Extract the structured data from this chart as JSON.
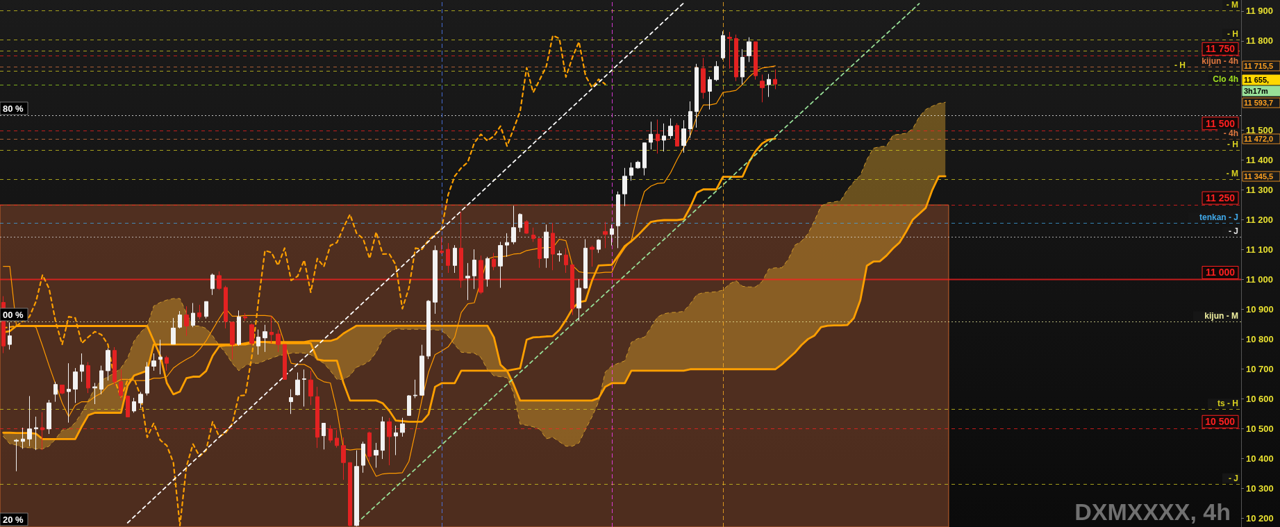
{
  "chart_data": {
    "type": "candlestick",
    "title": "DXMXXXX, 4h",
    "categories": [
      null,
      null,
      null,
      null,
      null,
      null,
      null,
      null,
      null,
      null,
      null,
      null,
      null,
      null,
      null,
      null,
      null,
      null,
      null,
      null,
      null,
      null,
      null,
      null,
      null,
      null,
      null,
      null,
      null,
      null,
      null,
      null,
      null,
      null,
      null,
      null,
      null,
      null,
      null,
      null,
      null,
      null,
      null,
      null,
      null,
      null,
      null,
      null,
      null,
      null,
      null,
      null,
      null,
      null,
      null,
      null,
      null,
      null,
      null,
      null,
      null,
      null,
      null,
      null,
      null,
      null,
      null,
      null,
      null,
      null,
      null,
      null,
      null,
      null,
      null,
      null,
      null,
      null,
      null,
      null,
      null,
      null,
      null,
      null,
      null,
      null,
      null,
      null,
      null,
      null,
      null,
      null,
      null,
      null,
      null,
      null,
      null,
      null,
      null,
      null,
      null,
      null,
      null,
      null,
      null,
      null,
      null,
      null,
      null,
      null,
      null,
      null,
      null,
      null,
      null,
      null,
      null,
      null,
      null,
      null,
      null,
      null,
      null,
      null,
      null,
      null,
      null,
      null,
      null,
      null,
      null,
      null,
      null,
      null,
      null,
      null,
      null,
      null,
      null,
      null,
      null,
      null,
      null,
      null,
      null
    ],
    "ohlc": [
      [
        10923,
        10944,
        10753,
        10777
      ],
      [
        10782,
        10856,
        10765,
        10811
      ],
      [
        10458,
        10465,
        10357,
        10461
      ],
      [
        10457,
        10503,
        10432,
        10465
      ],
      [
        10465,
        10609,
        10441,
        10499
      ],
      [
        10499,
        10540,
        10428,
        10503
      ],
      [
        10503,
        10555,
        10428,
        10496
      ],
      [
        10499,
        10596,
        10482,
        10586
      ],
      [
        10615,
        10657,
        10590,
        10648
      ],
      [
        10646,
        10646,
        10615,
        10619
      ],
      [
        10624,
        10719,
        10520,
        10632
      ],
      [
        10632,
        10703,
        10586,
        10690
      ],
      [
        10692,
        10752,
        10657,
        10713
      ],
      [
        10711,
        10723,
        10619,
        10636
      ],
      [
        10636,
        10653,
        10582,
        10640
      ],
      [
        10632,
        10711,
        10615,
        10694
      ],
      [
        10694,
        10769,
        10661,
        10762
      ],
      [
        10762,
        10773,
        10644,
        10657
      ],
      [
        10657,
        10698,
        10594,
        10611
      ],
      [
        10609,
        10611,
        10539,
        10539
      ],
      [
        10559,
        10603,
        10553,
        10590
      ],
      [
        10586,
        10623,
        10569,
        10615
      ],
      [
        10619,
        10723,
        10611,
        10707
      ],
      [
        10709,
        10752,
        10694,
        10727
      ],
      [
        10732,
        10798,
        10682,
        10740
      ],
      [
        10738,
        10744,
        10694,
        10719
      ],
      [
        10783,
        10871,
        10783,
        10837
      ],
      [
        10840,
        10894,
        10836,
        10881
      ],
      [
        10881,
        10910,
        10811,
        10844
      ],
      [
        10846,
        10921,
        10840,
        10887
      ],
      [
        10888,
        10915,
        10867,
        10875
      ],
      [
        10876,
        10926,
        10869,
        10926
      ],
      [
        10969,
        11020,
        10948,
        11015
      ],
      [
        11013,
        11027,
        10965,
        10970
      ],
      [
        10973,
        10979,
        10836,
        10859
      ],
      [
        10857,
        10857,
        10732,
        10782
      ],
      [
        10782,
        10896,
        10778,
        10875
      ],
      [
        10875,
        10887,
        10861,
        10871
      ],
      [
        10848,
        10852,
        10778,
        10786
      ],
      [
        10777,
        10832,
        10748,
        10807
      ],
      [
        10804,
        10848,
        10757,
        10825
      ],
      [
        10823,
        10877,
        10786,
        10815
      ],
      [
        10817,
        10832,
        10757,
        10782
      ],
      [
        10782,
        10782,
        10665,
        10665
      ],
      [
        10590,
        10632,
        10549,
        10604
      ],
      [
        10613,
        10688,
        10611,
        10663
      ],
      [
        10665,
        10698,
        10574,
        10667
      ],
      [
        10663,
        10694,
        10579,
        10609
      ],
      [
        10607,
        10640,
        10435,
        10471
      ],
      [
        10476,
        10518,
        10430,
        10518
      ],
      [
        10499,
        10511,
        10453,
        10461
      ],
      [
        10468,
        10495,
        10436,
        10443
      ],
      [
        10443,
        10470,
        10328,
        10386
      ],
      [
        10386,
        10386,
        10172,
        10175
      ],
      [
        10175,
        10427,
        10172,
        10373
      ],
      [
        10377,
        10456,
        10352,
        10448
      ],
      [
        10486,
        10490,
        10390,
        10407
      ],
      [
        10411,
        10452,
        10369,
        10427
      ],
      [
        10427,
        10540,
        10398,
        10523
      ],
      [
        10523,
        10536,
        10377,
        10473
      ],
      [
        10475,
        10510,
        10411,
        10486
      ],
      [
        10487,
        10536,
        10473,
        10516
      ],
      [
        10544,
        10612,
        10544,
        10610
      ],
      [
        10610,
        10664,
        10602,
        10612
      ],
      [
        10612,
        10781,
        10610,
        10743
      ],
      [
        10743,
        10931,
        10733,
        10927
      ],
      [
        10924,
        11114,
        10885,
        11097
      ],
      [
        11095,
        11143,
        11085,
        11090
      ],
      [
        11101,
        11122,
        11022,
        11047
      ],
      [
        11047,
        11115,
        11022,
        11105
      ],
      [
        11105,
        11226,
        10972,
        10997
      ],
      [
        11005,
        11055,
        10931,
        11011
      ],
      [
        11012,
        11101,
        10968,
        11065
      ],
      [
        11064,
        11080,
        10951,
        10957
      ],
      [
        11001,
        11076,
        10976,
        11070
      ],
      [
        11068,
        11089,
        11031,
        11043
      ],
      [
        11045,
        11126,
        10972,
        11114
      ],
      [
        11115,
        11155,
        11076,
        11124
      ],
      [
        11126,
        11247,
        11118,
        11174
      ],
      [
        11174,
        11222,
        11159,
        11218
      ],
      [
        11194,
        11199,
        11153,
        11155
      ],
      [
        11149,
        11174,
        11126,
        11137
      ],
      [
        11137,
        11137,
        11039,
        11070
      ],
      [
        11072,
        11184,
        11039,
        11159
      ],
      [
        11155,
        11189,
        11031,
        11085
      ],
      [
        11083,
        11097,
        11060,
        11086
      ],
      [
        11082,
        11105,
        11022,
        11049
      ],
      [
        11049,
        11049,
        10881,
        10902
      ],
      [
        10904,
        11001,
        10860,
        10971
      ],
      [
        10971,
        11135,
        10968,
        11105
      ],
      [
        11108,
        11114,
        11043,
        11101
      ],
      [
        11101,
        11135,
        11089,
        11132
      ],
      [
        11161,
        11193,
        11105,
        11151
      ],
      [
        11151,
        11184,
        11114,
        11170
      ],
      [
        11180,
        11295,
        11105,
        11284
      ],
      [
        11287,
        11374,
        11246,
        11346
      ],
      [
        11349,
        11392,
        11331,
        11374
      ],
      [
        11374,
        11398,
        11371,
        11393
      ],
      [
        11374,
        11458,
        11349,
        11458
      ],
      [
        11460,
        11529,
        11436,
        11487
      ],
      [
        11487,
        11536,
        11422,
        11465
      ],
      [
        11467,
        11523,
        11429,
        11481
      ],
      [
        11482,
        11540,
        11472,
        11514
      ],
      [
        11516,
        11524,
        11447,
        11447
      ],
      [
        11449,
        11534,
        11425,
        11505
      ],
      [
        11505,
        11597,
        11475,
        11563
      ],
      [
        11563,
        11723,
        11509,
        11710
      ],
      [
        11707,
        11743,
        11606,
        11627
      ],
      [
        11631,
        11680,
        11570,
        11670
      ],
      [
        11670,
        11732,
        11665,
        11714
      ],
      [
        11743,
        11832,
        11737,
        11818
      ],
      [
        11812,
        11830,
        11707,
        11808
      ],
      [
        11808,
        11821,
        11665,
        11679
      ],
      [
        11679,
        11772,
        11654,
        11745
      ],
      [
        11750,
        11812,
        11729,
        11797
      ],
      [
        11797,
        11797,
        11670,
        11683
      ],
      [
        11665,
        11687,
        11594,
        11643
      ],
      [
        11653,
        11689,
        11612,
        11671
      ],
      [
        11671,
        11704,
        11638,
        11655
      ],
      null,
      null,
      null,
      null,
      null,
      null,
      null,
      null,
      null,
      null,
      null,
      null,
      null,
      null,
      null,
      null,
      null,
      null,
      null,
      null,
      null,
      null,
      null,
      null,
      null,
      null
    ],
    "series": [
      {
        "type": "line",
        "color": "#ff9a00",
        "line_style": "solid",
        "values": [
          11044,
          11044,
          10846,
          10846,
          10846,
          10840,
          10777,
          10711,
          null,
          10586,
          10540,
          10578,
          10590,
          10590,
          10607,
          10619,
          10644,
          10653,
          10665,
          10665,
          10661,
          10661,
          10661,
          10669,
          10669,
          10674,
          10703,
          10719,
          10732,
          10744,
          10765,
          10794,
          10832,
          10869,
          10902,
          10877,
          10877,
          10879,
          10879,
          10879,
          10879,
          10877,
          10852,
          10786,
          10719,
          10715,
          10715,
          10703,
          10669,
          10657,
          10653,
          10561,
          10432,
          10428,
          10431,
          10431,
          10382,
          10340,
          10348,
          10350,
          10350,
          10352,
          10390,
          10490,
          10598,
          10689,
          10748,
          10760,
          10774,
          10806,
          10889,
          10918,
          10922,
          null,
          11068,
          11076,
          11076,
          11079,
          11085,
          11087,
          11097,
          11101,
          11105,
          11107,
          11107,
          11135,
          11130,
          11047,
          11026,
          11022,
          11022,
          11022,
          11024,
          11024,
          11072,
          11105,
          11131,
          11224,
          11295,
          11313,
          11322,
          11324,
          11358,
          11402,
          11442,
          11483,
          11545,
          11585,
          11585,
          11590,
          11627,
          11630,
          11634,
          11654,
          11679,
          11698,
          11709,
          11712,
          11716,
          null,
          null,
          null,
          null,
          null,
          null,
          null,
          null,
          null,
          null,
          null,
          null,
          null,
          null,
          null,
          null,
          null,
          null,
          null,
          null,
          null,
          null,
          null,
          null,
          null,
          null
        ]
      },
      {
        "type": "line",
        "color": "#ffa000",
        "line_style": "solid",
        "values": [
          10823,
          10827,
          10844,
          10844,
          10844,
          10844,
          10844,
          10844,
          10844,
          10844,
          10844,
          10844,
          10844,
          10844,
          10844,
          10844,
          10844,
          10844,
          10844,
          10844,
          10844,
          10844,
          10844,
          10794,
          10744,
          10653,
          10615,
          10624,
          10669,
          10674,
          10674,
          10693,
          10744,
          10776,
          10779,
          10779,
          10782,
          10786,
          10790,
          10790,
          10790,
          10788,
          10786,
          10786,
          10786,
          10786,
          10786,
          10786,
          10732,
          10728,
          10728,
          10728,
          10653,
          10594,
          10594,
          10594,
          10594,
          10594,
          10585,
          10560,
          10527,
          10525,
          10523,
          10523,
          10523,
          10548,
          10640,
          10652,
          10652,
          10652,
          10694,
          10694,
          10694,
          10694,
          10694,
          10694,
          10694,
          10694,
          10698,
          10702,
          10798,
          10806,
          10807,
          10809,
          10810,
          10831,
          10864,
          10902,
          10924,
          10928,
          10997,
          11047,
          11048,
          11049,
          11080,
          11112,
          11128,
          11148,
          11171,
          11193,
          11197,
          11199,
          11199,
          11199,
          11202,
          11242,
          11291,
          11302,
          11302,
          11302,
          11344,
          11344,
          11344,
          11345,
          11394,
          11431,
          11456,
          11469,
          11472,
          null,
          null,
          null,
          null,
          null,
          null,
          null,
          null,
          null,
          null,
          null,
          null,
          null,
          null,
          null,
          null,
          null,
          null,
          null,
          null,
          null,
          null,
          null,
          null,
          null,
          null
        ]
      },
      {
        "type": "line",
        "color": "#ffa000",
        "line_style": "dashed",
        "values": [
          10837,
          null,
          10844,
          null,
          10875,
          10926,
          11015,
          10970,
          10859,
          10782,
          10875,
          10871,
          10786,
          10807,
          10825,
          10815,
          10782,
          10665,
          10604,
          10663,
          10667,
          10609,
          10471,
          10518,
          10461,
          10443,
          10386,
          10175,
          10373,
          10448,
          10407,
          10427,
          10523,
          10473,
          10486,
          10516,
          10610,
          10612,
          10743,
          10927,
          11097,
          11090,
          11047,
          11105,
          10997,
          11011,
          11065,
          10957,
          11070,
          11043,
          11114,
          11124,
          11174,
          11218,
          11155,
          11137,
          11070,
          11159,
          11085,
          11086,
          11049,
          10902,
          10971,
          11105,
          11101,
          11132,
          11151,
          11170,
          11284,
          11346,
          11374,
          11393,
          11458,
          11487,
          11465,
          11481,
          11514,
          11447,
          11505,
          11563,
          11710,
          11627,
          11670,
          11714,
          11818,
          11808,
          11679,
          11745,
          11797,
          11683,
          11643,
          11671,
          11655,
          null,
          null,
          null,
          null,
          null,
          null,
          null,
          null,
          null,
          null,
          null,
          null,
          null,
          null,
          null,
          null,
          null,
          null,
          null,
          null,
          null,
          null,
          null,
          null,
          null,
          null,
          null,
          null,
          null,
          null,
          null,
          null,
          null,
          null,
          null,
          null,
          null,
          null,
          null,
          null,
          null,
          null,
          null,
          null,
          null,
          null,
          null,
          null,
          null,
          null,
          null,
          null
        ]
      },
      {
        "type": "line",
        "color": "#d09a2a",
        "line_style": "dashed",
        "values": [
          10474,
          10449,
          10445,
          10436,
          10436,
          10432,
          10432,
          10441,
          10465,
          10495,
          10499,
          10520,
          10553,
          10594,
          10636,
          10661,
          10674,
          10686,
          10703,
          10736,
          10794,
          10823,
          10844,
          10911,
          10923,
          10931,
          10936,
          10936,
          10887,
          10844,
          10844,
          10836,
          10811,
          10779,
          10753,
          10719,
          10694,
          10711,
          10719,
          10719,
          10728,
          10736,
          10744,
          10748,
          10753,
          10753,
          10753,
          10748,
          10732,
          10719,
          10694,
          10665,
          10665,
          10678,
          10706,
          10714,
          10727,
          10756,
          10802,
          10823,
          10835,
          10833,
          10833,
          10833,
          10833,
          10832,
          10831,
          10829,
          10810,
          10781,
          10756,
          10754,
          10753,
          10739,
          10698,
          10677,
          10674,
          10671,
          10619,
          10515,
          10511,
          10506,
          10498,
          10466,
          10471,
          10456,
          10441,
          10441,
          10452,
          10498,
          10540,
          10590,
          10689,
          10710,
          10719,
          10727,
          10789,
          10802,
          10806,
          10839,
          10874,
          10885,
          10889,
          10890,
          10893,
          10918,
          10949,
          10956,
          10957,
          10959,
          10964,
          10985,
          10996,
          10977,
          10975,
          10975,
          10993,
          11035,
          11039,
          11039,
          11068,
          11115,
          11128,
          11153,
          11197,
          11246,
          11257,
          11260,
          11264,
          11300,
          11327,
          11349,
          11402,
          11440,
          11445,
          11447,
          11484,
          11487,
          11490,
          11505,
          11545,
          11570,
          11581,
          11590,
          11594
        ],
        "upper": [
          10474,
          10449,
          10445,
          10436,
          10436,
          10432,
          10432,
          10441,
          10465,
          10495,
          10499,
          10520,
          10553,
          10594,
          10636,
          10661,
          10674,
          10686,
          10703,
          10736,
          10794,
          10823,
          10844,
          10911,
          10923,
          10931,
          10936,
          10936,
          10887,
          10844,
          10844,
          10836,
          10811,
          10779,
          10753,
          10719,
          10694,
          10711,
          10719,
          10719,
          10728,
          10736,
          10744,
          10748,
          10753,
          10753,
          10753,
          10748,
          10732,
          10719,
          10694,
          10665,
          10665,
          10678,
          10706,
          10714,
          10727,
          10756,
          10802,
          10823,
          10835,
          10833,
          10833,
          10833,
          10833,
          10832,
          10831,
          10829,
          10810,
          10781,
          10756,
          10754,
          10753,
          10739,
          10698,
          10677,
          10674,
          10671,
          10619,
          10515,
          10511,
          10506,
          10498,
          10466,
          10471,
          10456,
          10441,
          10441,
          10452,
          10498,
          10540,
          10590,
          10689,
          10710,
          10719,
          10727,
          10789,
          10802,
          10806,
          10839,
          10874,
          10885,
          10889,
          10890,
          10893,
          10918,
          10949,
          10956,
          10957,
          10959,
          10964,
          10985,
          10996,
          10977,
          10975,
          10975,
          10993,
          11035,
          11039,
          11039,
          11068,
          11115,
          11128,
          11153,
          11197,
          11246,
          11257,
          11260,
          11264,
          11300,
          11327,
          11349,
          11402,
          11440,
          11445,
          11447,
          11484,
          11487,
          11490,
          11505,
          11545,
          11570,
          11581,
          11590,
          11594
        ],
        "lower": [
          10486,
          10486,
          10485,
          10485,
          10485,
          10483,
          10465,
          10465,
          10465,
          10465,
          10465,
          10465,
          10507,
          10545,
          10553,
          10553,
          10553,
          10553,
          10553,
          10644,
          10678,
          10686,
          10694,
          10782,
          10782,
          10782,
          10782,
          10782,
          10782,
          10782,
          10782,
          10782,
          10782,
          10782,
          10782,
          10782,
          10782,
          10782,
          10787,
          10790,
          10790,
          10790,
          10790,
          10790,
          10790,
          10790,
          10790,
          10794,
          10794,
          10794,
          10794,
          10801,
          10819,
          10832,
          10845,
          10845,
          10845,
          10845,
          10845,
          10845,
          10845,
          10845,
          10845,
          10845,
          10845,
          10845,
          10845,
          10845,
          10845,
          10845,
          10845,
          10845,
          10845,
          10845,
          10845,
          10806,
          10714,
          10694,
          10648,
          10594,
          10594,
          10594,
          10594,
          10594,
          10594,
          10594,
          10594,
          10594,
          10594,
          10594,
          10594,
          10602,
          10640,
          10652,
          10652,
          10652,
          10694,
          10694,
          10694,
          10694,
          10694,
          10694,
          10694,
          10694,
          10694,
          10699,
          10699,
          10699,
          10699,
          10699,
          10699,
          10699,
          10699,
          10699,
          10699,
          10699,
          10699,
          10699,
          10699,
          10715,
          10735,
          10755,
          10780,
          10800,
          10812,
          10840,
          10845,
          10846,
          10846,
          10847,
          10870,
          10930,
          11046,
          11060,
          11061,
          11080,
          11104,
          11124,
          11160,
          11200,
          11220,
          11240,
          11300,
          11346,
          11346
        ]
      },
      {
        "type": "line",
        "color": "#ffa000",
        "line_style": "solid",
        "values": [
          10486,
          10486,
          10485,
          10485,
          10485,
          10483,
          10465,
          10465,
          10465,
          10465,
          10465,
          10465,
          10507,
          10545,
          10553,
          10553,
          10553,
          10553,
          10553,
          10644,
          10678,
          10686,
          10694,
          10782,
          10782,
          10782,
          10782,
          10782,
          10782,
          10782,
          10782,
          10782,
          10782,
          10782,
          10782,
          10782,
          10782,
          10782,
          10787,
          10790,
          10790,
          10790,
          10790,
          10790,
          10790,
          10790,
          10790,
          10794,
          10794,
          10794,
          10794,
          10801,
          10819,
          10832,
          10845,
          10845,
          10845,
          10845,
          10845,
          10845,
          10845,
          10845,
          10845,
          10845,
          10845,
          10845,
          10845,
          10845,
          10845,
          10845,
          10845,
          10845,
          10845,
          10845,
          10845,
          10806,
          10714,
          10694,
          10648,
          10594,
          10594,
          10594,
          10594,
          10594,
          10594,
          10594,
          10594,
          10594,
          10594,
          10594,
          10594,
          10602,
          10640,
          10652,
          10652,
          10652,
          10694,
          10694,
          10694,
          10694,
          10694,
          10694,
          10694,
          10694,
          10694,
          10699,
          10699,
          10699,
          10699,
          10699,
          10699,
          10699,
          10699,
          10699,
          10699,
          10699,
          10699,
          10699,
          10699,
          10715,
          10735,
          10755,
          10780,
          10800,
          10812,
          10840,
          10845,
          10846,
          10846,
          10847,
          10870,
          10930,
          11046,
          11060,
          11061,
          11080,
          11104,
          11124,
          11160,
          11200,
          11220,
          11240,
          11300,
          11346,
          11346
        ]
      },
      {
        "type": "line",
        "color": "#ffffff",
        "line_style": "dashed",
        "values": [
          null,
          null,
          null,
          null,
          null,
          null,
          null,
          null,
          null,
          null,
          null,
          null,
          null,
          null,
          null,
          null,
          null,
          null,
          null,
          10184,
          null,
          null,
          null,
          null,
          null,
          null,
          null,
          null,
          null,
          null,
          null,
          null,
          null,
          null,
          null,
          null,
          null,
          null,
          null,
          null,
          null,
          null,
          null,
          null,
          null,
          null,
          null,
          null,
          null,
          null,
          null,
          null,
          null,
          null,
          null,
          null,
          null,
          null,
          null,
          null,
          null,
          null,
          null,
          null,
          null,
          null,
          null,
          null,
          null,
          null,
          null,
          null,
          null,
          null,
          null,
          null,
          null,
          null,
          null,
          null,
          null,
          null,
          null,
          null,
          null,
          null,
          null,
          null,
          null,
          null,
          null,
          null,
          null,
          null,
          null,
          null,
          null,
          null,
          null,
          null,
          null,
          null,
          null,
          null,
          11927,
          null,
          null,
          null,
          null,
          null,
          null,
          null,
          null,
          null,
          null,
          null,
          null,
          null,
          null,
          null,
          null,
          null,
          null,
          null,
          null,
          null,
          null,
          null,
          null,
          null,
          null,
          null,
          null,
          null,
          null,
          null,
          null,
          null,
          null,
          null,
          null,
          null,
          null,
          null,
          null
        ]
      },
      {
        "type": "line",
        "color": "#98e098",
        "line_style": "dashed",
        "values": [
          null,
          null,
          null,
          null,
          null,
          null,
          null,
          null,
          null,
          null,
          null,
          null,
          null,
          null,
          null,
          null,
          null,
          null,
          null,
          null,
          null,
          null,
          null,
          null,
          null,
          null,
          null,
          null,
          null,
          null,
          null,
          null,
          null,
          null,
          null,
          null,
          null,
          null,
          null,
          null,
          null,
          null,
          null,
          null,
          null,
          null,
          null,
          null,
          null,
          null,
          null,
          null,
          null,
          null,
          10182,
          null,
          null,
          null,
          null,
          null,
          null,
          null,
          null,
          null,
          null,
          null,
          null,
          null,
          null,
          null,
          null,
          null,
          null,
          null,
          null,
          null,
          null,
          null,
          null,
          null,
          null,
          null,
          null,
          null,
          null,
          null,
          null,
          null,
          null,
          null,
          null,
          null,
          null,
          null,
          null,
          null,
          null,
          null,
          null,
          null,
          null,
          null,
          null,
          null,
          null,
          null,
          null,
          null,
          null,
          null,
          null,
          null,
          null,
          null,
          null,
          null,
          null,
          null,
          null,
          null,
          null,
          null,
          null,
          null,
          null,
          null,
          null,
          null,
          null,
          null,
          null,
          null,
          null,
          null,
          null,
          null,
          null,
          null,
          null,
          null,
          11925,
          null,
          null,
          null,
          null
        ]
      }
    ],
    "ylim": [
      10170,
      11937
    ],
    "yticks": [
      {
        "value": 11900,
        "label": "11 900"
      },
      {
        "value": 11800,
        "label": "11 800"
      },
      {
        "value": 11500,
        "label": "11 500"
      },
      {
        "value": 11400,
        "label": "11 400"
      },
      {
        "value": 11300,
        "label": "11 300"
      },
      {
        "value": 11200,
        "label": "11 200"
      },
      {
        "value": 11100,
        "label": "11 100"
      },
      {
        "value": 11000,
        "label": "11 000"
      },
      {
        "value": 10900,
        "label": "10 900"
      },
      {
        "value": 10800,
        "label": "10 800"
      },
      {
        "value": 10700,
        "label": "10 700"
      },
      {
        "value": 10600,
        "label": "10 600"
      },
      {
        "value": 10500,
        "label": "10 500"
      },
      {
        "value": 10400,
        "label": "10 400"
      },
      {
        "value": 10300,
        "label": "10 300"
      },
      {
        "value": 10200,
        "label": "10 200"
      }
    ],
    "tick_labels": "y",
    "marker": "none",
    "bands": [
      {
        "axis": "y",
        "from": 10170,
        "to": 11250,
        "color": "#5a3422"
      }
    ],
    "ref_lines": [
      {
        "axis": "y",
        "value": 11903,
        "label": "- M",
        "color": "#d8d020",
        "line_style": "dashed"
      },
      {
        "axis": "y",
        "value": 11805,
        "label": "- H",
        "color": "#d8d020",
        "line_style": "dashed"
      },
      {
        "axis": "y",
        "value": 11766,
        "label": null,
        "color": "#d8d020",
        "line_style": "dashed"
      },
      {
        "axis": "y",
        "value": 11750,
        "label": "11 750",
        "color": "#ff2020",
        "line_style": "dashed"
      },
      {
        "axis": "y",
        "value": 11713,
        "label": "kijun - 4h",
        "color": "#e07840",
        "line_style": "dashed"
      },
      {
        "axis": "y",
        "value": 11699,
        "label": "- H",
        "color": "#d8d020",
        "line_style": "dashed"
      },
      {
        "axis": "y",
        "value": 11652,
        "label": "Clo 4h",
        "color": "#a0e020",
        "line_style": "dashed"
      },
      {
        "axis": "y",
        "value": 11551,
        "label": null,
        "color": "#ffffff",
        "line_style": "dotted"
      },
      {
        "axis": "y",
        "value": 11500,
        "label": "11 500",
        "color": "#ff2020",
        "line_style": "dashed"
      },
      {
        "axis": "y",
        "value": 11472,
        "label": "- 4h",
        "color": "#e07840",
        "line_style": "dashed"
      },
      {
        "axis": "y",
        "value": 11435,
        "label": "- H",
        "color": "#d8d020",
        "line_style": "dashed"
      },
      {
        "axis": "y",
        "value": 11336,
        "label": "- M",
        "color": "#d8d020",
        "line_style": "dashed"
      },
      {
        "axis": "y",
        "value": 11250,
        "label": "11 250",
        "color": "#ff2020",
        "line_style": "dashed"
      },
      {
        "axis": "y",
        "value": 11190,
        "label": "tenkan - J",
        "color": "#40a8e8",
        "line_style": "dashed"
      },
      {
        "axis": "y",
        "value": 11142,
        "label": "- J",
        "color": "#e0e0e0",
        "line_style": "dotted"
      },
      {
        "axis": "y",
        "value": 11000,
        "label": "11 000",
        "color": "#ff2020",
        "line_style": "solid"
      },
      {
        "axis": "y",
        "value": 10858,
        "label": "kijun - M",
        "color": "#f0f0a0",
        "line_style": "dotted"
      },
      {
        "axis": "y",
        "value": 10565,
        "label": "ts - H",
        "color": "#d8d020",
        "line_style": "dashed"
      },
      {
        "axis": "y",
        "value": 10500,
        "label": "10 500",
        "color": "#ff2020",
        "line_style": "dashed"
      },
      {
        "axis": "y",
        "value": 10315,
        "label": "- J",
        "color": "#d8d020",
        "line_style": "dashed"
      }
    ],
    "annotations": [
      "80 %",
      "00 %",
      "20 %",
      "11 715,5",
      "11 655,",
      "3h17m",
      "11 593,7",
      "11 472,0",
      "11 345,5"
    ]
  }
}
